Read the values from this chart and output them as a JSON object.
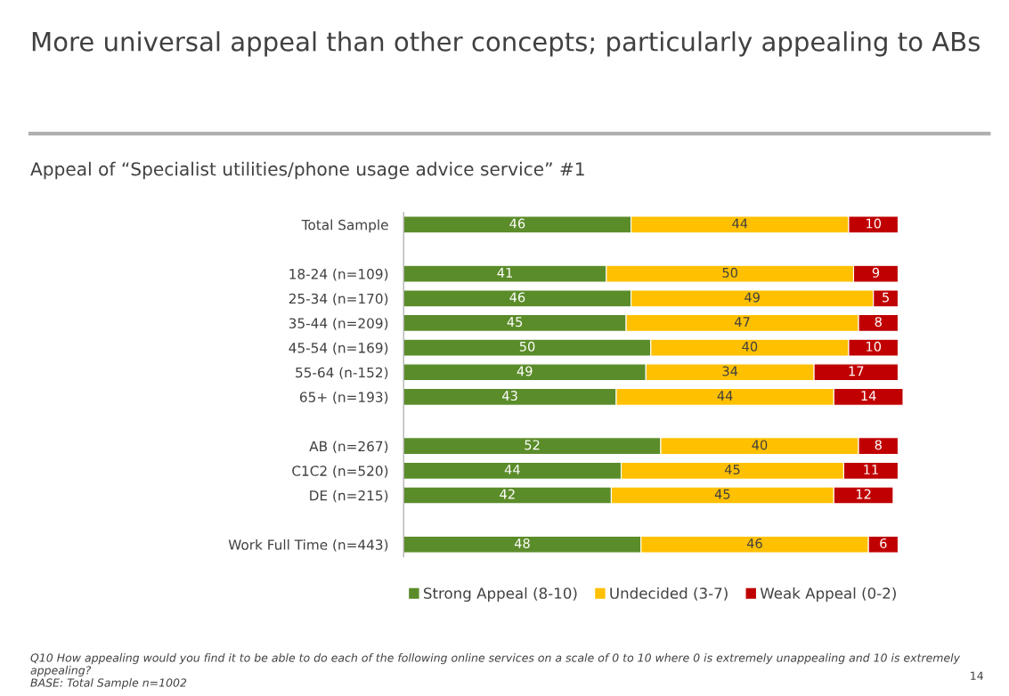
{
  "chart_data": {
    "type": "bar",
    "orientation": "horizontal",
    "stacked": true,
    "data_labels": true,
    "legend": "bottom",
    "grid": false,
    "title": "More universal appeal than other concepts; particularly appealing to ABs",
    "subtitle": "Appeal of “Specialist utilities/phone usage advice service” #1",
    "categories": [
      "Total Sample",
      null,
      "18-24 (n=109)",
      "25-34 (n=170)",
      "35-44 (n=209)",
      "45-54 (n=169)",
      "55-64 (n-152)",
      "65+ (n=193)",
      null,
      "AB (n=267)",
      "C1C2 (n=520)",
      "DE (n=215)",
      null,
      "Work Full Time (n=443)"
    ],
    "series": [
      {
        "name": "Strong Appeal (8-10)",
        "color": "#5b8c2a",
        "values": [
          46,
          null,
          41,
          46,
          45,
          50,
          49,
          43,
          null,
          52,
          44,
          42,
          null,
          48
        ]
      },
      {
        "name": "Undecided (3-7)",
        "color": "#ffc000",
        "values": [
          44,
          null,
          50,
          49,
          47,
          40,
          34,
          44,
          null,
          40,
          45,
          45,
          null,
          46
        ]
      },
      {
        "name": "Weak Appeal (0-2)",
        "color": "#c00000",
        "values": [
          10,
          null,
          9,
          5,
          8,
          10,
          17,
          14,
          null,
          8,
          11,
          12,
          null,
          6
        ]
      }
    ],
    "annotations": [
      "Q10 How appealing would you find it to be able to do each of the following online services on a scale of 0 to 10 where 0 is extremely unappealing and 10 is extremely appealing?\nBASE: Total Sample n=1002",
      "14"
    ]
  }
}
